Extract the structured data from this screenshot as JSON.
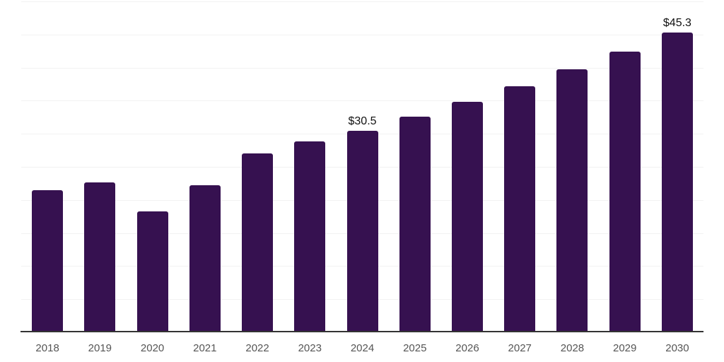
{
  "chart_data": {
    "type": "bar",
    "title": "",
    "xlabel": "",
    "ylabel": "",
    "categories": [
      "2018",
      "2019",
      "2020",
      "2021",
      "2022",
      "2023",
      "2024",
      "2025",
      "2026",
      "2027",
      "2028",
      "2029",
      "2030"
    ],
    "values": [
      21.5,
      22.7,
      18.3,
      22.2,
      27.0,
      28.8,
      30.5,
      32.6,
      34.8,
      37.2,
      39.7,
      42.4,
      45.3
    ],
    "point_labels": {
      "2024": "$30.5",
      "2030": "$45.3"
    },
    "ylim": [
      0,
      50
    ],
    "gridline_step": 5,
    "grid": "horizontal",
    "legend": "none",
    "y_tick_labels_visible": false
  },
  "style": {
    "bar_color": "#361150",
    "grid_color": "#f2f2f2",
    "axis_color": "#333333",
    "tick_label_color": "#555555",
    "data_label_color": "#111111",
    "background_color": "#ffffff"
  }
}
